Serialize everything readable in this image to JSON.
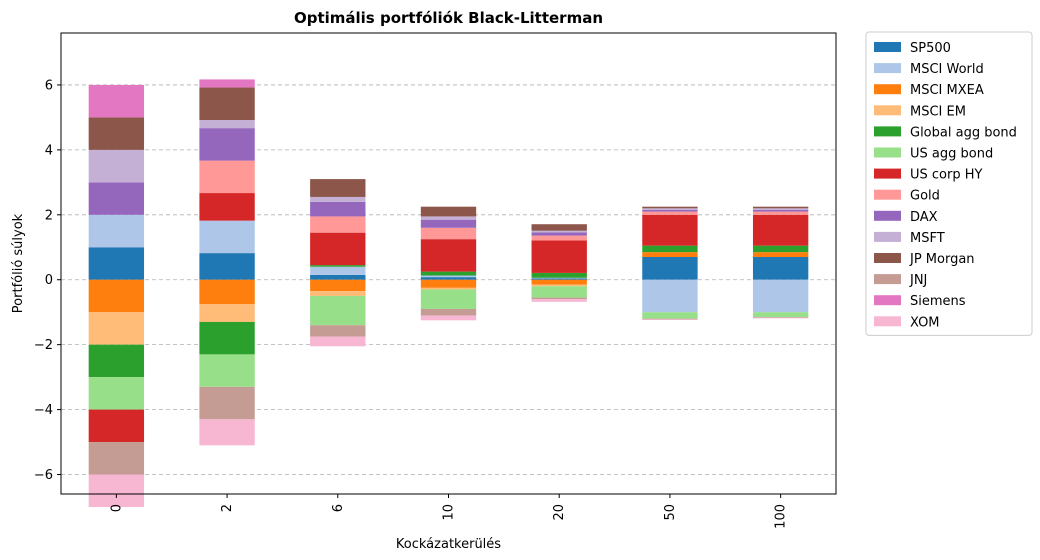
{
  "chart_data": {
    "type": "bar",
    "stacked": true,
    "title": "Optimális portfóliók Black-Litterman",
    "xlabel": "Kockázatkerülés",
    "ylabel": "Portfólió súlyok",
    "categories": [
      "0",
      "2",
      "6",
      "10",
      "20",
      "50",
      "100"
    ],
    "ylim": [
      -6.6,
      7.6
    ],
    "yticks": [
      -6,
      -4,
      -2,
      0,
      2,
      4,
      6
    ],
    "grid": "horizontal-dashed",
    "legend_position": "outside-right",
    "series": [
      {
        "name": "SP500",
        "color": "#1f77b4",
        "values": [
          1.0,
          0.82,
          0.15,
          0.08,
          0.04,
          0.7,
          0.7
        ]
      },
      {
        "name": "MSCI World",
        "color": "#aec7e8",
        "values": [
          1.0,
          1.0,
          0.25,
          0.05,
          0.02,
          -1.0,
          -1.0
        ]
      },
      {
        "name": "MSCI MXEA",
        "color": "#ff7f0e",
        "values": [
          -1.0,
          -0.75,
          -0.35,
          -0.25,
          -0.15,
          0.15,
          0.15
        ]
      },
      {
        "name": "MSCI EM",
        "color": "#ffbb78",
        "values": [
          -1.0,
          -0.55,
          -0.15,
          -0.05,
          -0.05,
          0.0,
          0.0
        ]
      },
      {
        "name": "Global agg bond",
        "color": "#2ca02c",
        "values": [
          -1.0,
          -1.0,
          0.05,
          0.12,
          0.15,
          0.2,
          0.2
        ]
      },
      {
        "name": "US agg bond",
        "color": "#98df8a",
        "values": [
          -1.0,
          -1.0,
          -0.9,
          -0.6,
          -0.35,
          -0.2,
          -0.15
        ]
      },
      {
        "name": "US corp HY",
        "color": "#d62728",
        "values": [
          -1.0,
          0.85,
          1.0,
          1.0,
          1.0,
          0.95,
          0.95
        ]
      },
      {
        "name": "Gold",
        "color": "#ff9896",
        "values": [
          0.0,
          1.0,
          0.5,
          0.35,
          0.15,
          0.1,
          0.1
        ]
      },
      {
        "name": "DAX",
        "color": "#9467bd",
        "values": [
          1.0,
          1.0,
          0.45,
          0.25,
          0.1,
          0.05,
          0.05
        ]
      },
      {
        "name": "MSFT",
        "color": "#c5b0d5",
        "values": [
          1.0,
          0.25,
          0.15,
          0.1,
          0.05,
          0.05,
          0.05
        ]
      },
      {
        "name": "JP Morgan",
        "color": "#8c564b",
        "values": [
          1.0,
          1.0,
          0.55,
          0.3,
          0.2,
          0.05,
          0.05
        ]
      },
      {
        "name": "JNJ",
        "color": "#c49c94",
        "values": [
          -1.0,
          -1.0,
          -0.35,
          -0.2,
          -0.05,
          -0.02,
          -0.02
        ]
      },
      {
        "name": "Siemens",
        "color": "#e377c2",
        "values": [
          1.0,
          0.25,
          0.0,
          0.0,
          0.0,
          0.0,
          0.0
        ]
      },
      {
        "name": "XOM",
        "color": "#f7b6d2",
        "values": [
          -1.0,
          -0.8,
          -0.3,
          -0.15,
          -0.08,
          -0.02,
          -0.02
        ]
      }
    ]
  }
}
